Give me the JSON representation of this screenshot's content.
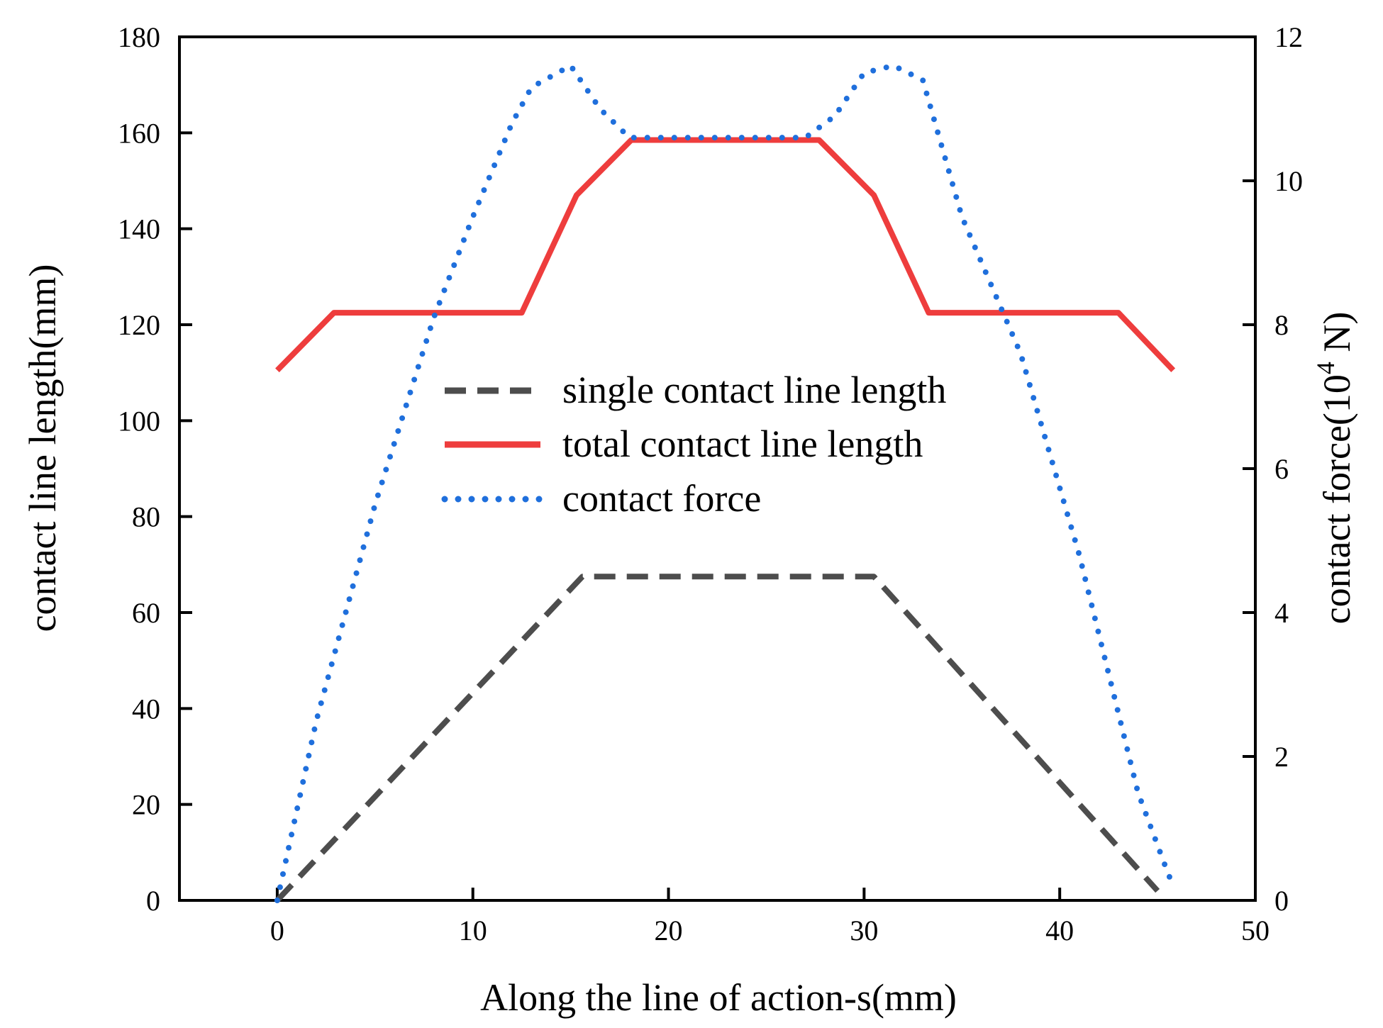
{
  "chart_data": {
    "type": "line",
    "title": "",
    "xlabel": "Along the line of action-s(mm)",
    "ylabel": "contact line length(mm)",
    "y2label_main": "contact force(10",
    "y2label_sup": "4",
    "y2label_tail": " N)",
    "xlim": [
      -5,
      50
    ],
    "ylim": [
      0,
      180
    ],
    "y2lim": [
      0,
      12
    ],
    "xticks": [
      0,
      10,
      20,
      30,
      40,
      50
    ],
    "yticks": [
      0,
      20,
      40,
      60,
      80,
      100,
      120,
      140,
      160,
      180
    ],
    "y2ticks": [
      0,
      2,
      4,
      6,
      8,
      10,
      12
    ],
    "legend_position": "center",
    "series": [
      {
        "name": "single contact line length",
        "axis": "left",
        "style": "dashed",
        "color": "#4d4d4d",
        "x": [
          0,
          15.6,
          30.5,
          45
        ],
        "y": [
          0,
          67.5,
          67.5,
          2
        ]
      },
      {
        "name": "total contact line length",
        "axis": "left",
        "style": "solid",
        "color": "#ee3d3d",
        "x": [
          0,
          2.9,
          12.5,
          15.3,
          18.1,
          27.7,
          30.5,
          33.3,
          43,
          45.8
        ],
        "y": [
          110.5,
          122.5,
          122.5,
          147,
          158.5,
          158.5,
          147,
          122.5,
          122.5,
          110.5
        ]
      },
      {
        "name": "contact force",
        "axis": "right",
        "style": "dotted",
        "color": "#1f6fdc",
        "x": [
          0,
          2,
          5,
          8,
          10,
          12,
          13,
          15,
          16.5,
          18,
          21,
          27,
          28.5,
          30,
          31.5,
          33,
          35,
          38,
          41,
          44,
          45.5,
          45.8
        ],
        "y": [
          0,
          2.5,
          5.5,
          8.1,
          9.5,
          10.8,
          11.3,
          11.6,
          11,
          10.6,
          10.6,
          10.6,
          10.9,
          11.5,
          11.6,
          11.4,
          9.5,
          7.6,
          4.8,
          1.5,
          0.4,
          0.2
        ]
      }
    ]
  }
}
